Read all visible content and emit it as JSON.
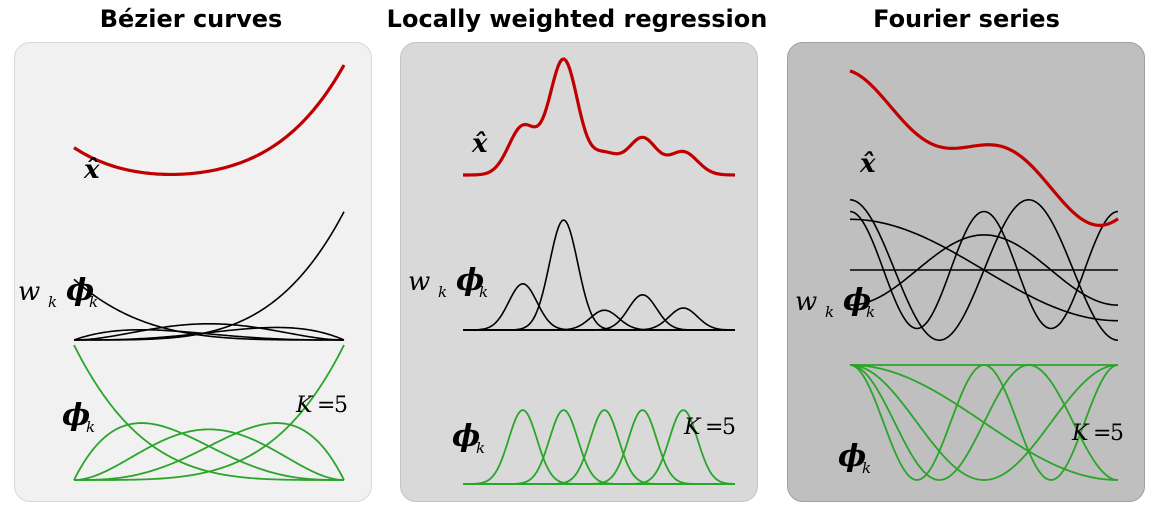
{
  "panels": [
    {
      "title": "Bézier curves",
      "xhat": "x̂",
      "w": "w",
      "sub_k": "k",
      "phi": "ϕ",
      "K_label": "K",
      "eq": "=",
      "K_value": "5"
    },
    {
      "title": "Locally weighted regression",
      "xhat": "x̂",
      "w": "w",
      "sub_k": "k",
      "phi": "ϕ",
      "K_label": "K",
      "eq": "=",
      "K_value": "5"
    },
    {
      "title": "Fourier series",
      "xhat": "x̂",
      "w": "w",
      "sub_k": "k",
      "phi": "ϕ",
      "K_label": "K",
      "eq": "=",
      "K_value": "5"
    }
  ],
  "colors": {
    "reconstruction": "#c00000",
    "weighted_basis": "#000000",
    "basis": "#2aa52a"
  }
}
